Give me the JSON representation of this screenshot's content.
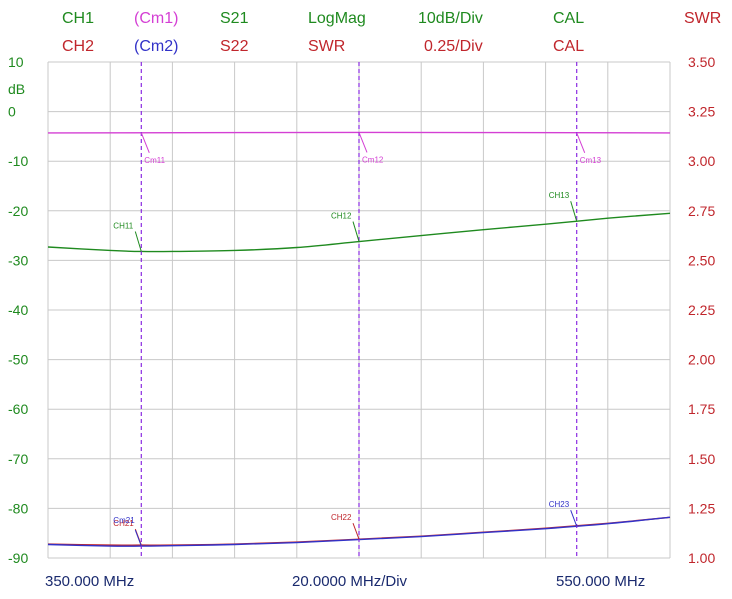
{
  "header": {
    "row1": [
      {
        "text": "CH1",
        "color": "#1f8a1f"
      },
      {
        "text": "(Cm1)",
        "color": "#d43fd4"
      },
      {
        "text": "S21",
        "color": "#1f8a1f"
      },
      {
        "text": "LogMag",
        "color": "#1f8a1f"
      },
      {
        "text": "10dB/Div",
        "color": "#1f8a1f"
      },
      {
        "text": "CAL",
        "color": "#1f8a1f"
      },
      {
        "text": "SWR",
        "color": "#c0262c"
      }
    ],
    "row2": [
      {
        "text": "CH2",
        "color": "#c0262c"
      },
      {
        "text": "(Cm2)",
        "color": "#3232c8"
      },
      {
        "text": "S22",
        "color": "#c0262c"
      },
      {
        "text": "SWR",
        "color": "#c0262c"
      },
      {
        "text": "0.25/Div",
        "color": "#c0262c"
      },
      {
        "text": "CAL",
        "color": "#c0262c"
      }
    ]
  },
  "chart_data": {
    "type": "line",
    "x_start_label": "350.000 MHz",
    "x_div_label": "20.0000 MHz/Div",
    "x_stop_label": "550.000 MHz",
    "x_range_mhz": [
      350,
      550
    ],
    "left_axis": {
      "unit": "dB",
      "ticks": [
        "10",
        "0",
        "-10",
        "-20",
        "-30",
        "-40",
        "-50",
        "-60",
        "-70",
        "-80",
        "-90"
      ],
      "range": [
        -90,
        10
      ],
      "color": "#1f8a1f"
    },
    "right_axis": {
      "unit": "SWR",
      "ticks": [
        "3.50",
        "3.25",
        "3.00",
        "2.75",
        "2.50",
        "2.25",
        "2.00",
        "1.75",
        "1.50",
        "1.25",
        "1.00"
      ],
      "range": [
        1.0,
        3.5
      ],
      "color": "#c0262c"
    },
    "grid": true,
    "series": [
      {
        "name": "CH1",
        "axis": "left",
        "color": "#1f8a1f",
        "x": [
          350,
          370,
          380,
          390,
          410,
          430,
          450,
          470,
          490,
          510,
          530,
          550
        ],
        "y": [
          -27.3,
          -28.0,
          -28.2,
          -28.2,
          -28.0,
          -27.4,
          -26.2,
          -25.0,
          -23.8,
          -22.7,
          -21.5,
          -20.5
        ]
      },
      {
        "name": "Cm1",
        "axis": "left",
        "color": "#d43fd4",
        "x": [
          350,
          450,
          550
        ],
        "y": [
          -4.3,
          -4.2,
          -4.3
        ]
      },
      {
        "name": "CH2",
        "axis": "right",
        "color": "#c0262c",
        "x": [
          350,
          370,
          380,
          390,
          410,
          430,
          450,
          470,
          490,
          510,
          530,
          550
        ],
        "y": [
          1.07,
          1.065,
          1.065,
          1.065,
          1.07,
          1.08,
          1.095,
          1.11,
          1.13,
          1.15,
          1.175,
          1.205
        ]
      },
      {
        "name": "Cm2",
        "axis": "right",
        "color": "#3232c8",
        "x": [
          350,
          370,
          380,
          390,
          410,
          430,
          450,
          470,
          490,
          510,
          530,
          550
        ],
        "y": [
          1.068,
          1.06,
          1.06,
          1.062,
          1.068,
          1.078,
          1.093,
          1.108,
          1.128,
          1.148,
          1.173,
          1.205
        ]
      }
    ],
    "markers": [
      {
        "x": 380,
        "labels": [
          {
            "text": "Cm11",
            "color": "#d43fd4",
            "series": "Cm1"
          },
          {
            "text": "CH11",
            "color": "#1f8a1f",
            "series": "CH1"
          },
          {
            "text": "CH21",
            "color": "#c0262c",
            "series": "CH2"
          },
          {
            "text": "Cm21",
            "color": "#3232c8",
            "series": "Cm2"
          }
        ]
      },
      {
        "x": 450,
        "labels": [
          {
            "text": "Cm12",
            "color": "#d43fd4",
            "series": "Cm1"
          },
          {
            "text": "CH12",
            "color": "#1f8a1f",
            "series": "CH1"
          },
          {
            "text": "CH22",
            "color": "#c0262c",
            "series": "CH2"
          }
        ]
      },
      {
        "x": 520,
        "labels": [
          {
            "text": "Cm13",
            "color": "#d43fd4",
            "series": "Cm1"
          },
          {
            "text": "CH13",
            "color": "#1f8a1f",
            "series": "CH1"
          },
          {
            "text": "CH23",
            "color": "#3232c8",
            "series": "Cm2"
          }
        ]
      }
    ],
    "marker_line_color": "#8a2be2"
  }
}
